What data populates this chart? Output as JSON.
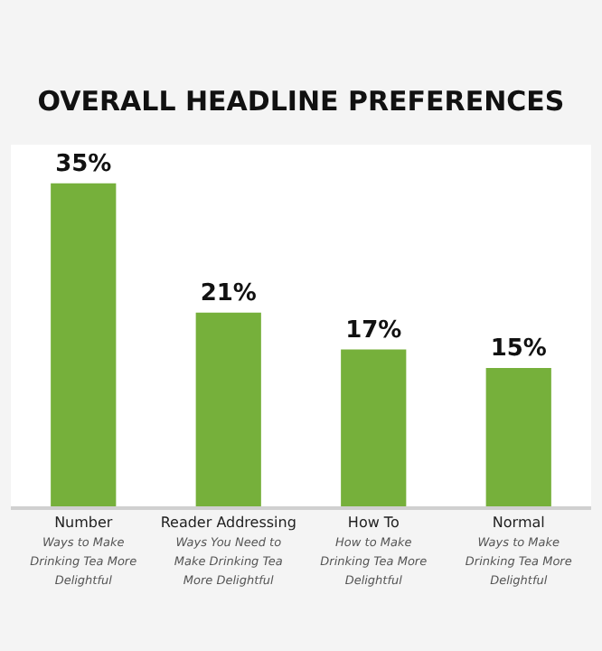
{
  "chart_data": {
    "type": "bar",
    "title": "OVERALL HEADLINE PREFERENCES",
    "categories": [
      "Number\nWays to Make\nDrinking Tea More\nDelightful",
      "Reader Addressing\nWays You Need to\nMake Drinking Tea\nMore Delightful",
      "How To\nHow to Make\nDrinking Tea More\nDelightful",
      "Normal\nWays to Make\nDrinking Tea More\nDelightful"
    ],
    "values": [
      35,
      21,
      17,
      15
    ],
    "value_labels": [
      "35%",
      "21%",
      "17%",
      "15%"
    ],
    "color": "#76b03b"
  }
}
